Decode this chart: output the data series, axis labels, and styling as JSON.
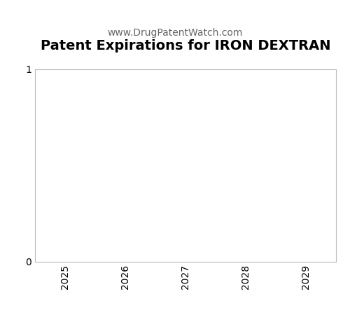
{
  "title": "Patent Expirations for IRON DEXTRAN",
  "subtitle": "www.DrugPatentWatch.com",
  "title_fontsize": 14,
  "subtitle_fontsize": 10,
  "title_fontweight": "bold",
  "xlim": [
    2024.5,
    2029.5
  ],
  "ylim": [
    0,
    1
  ],
  "xticks": [
    2025,
    2026,
    2027,
    2028,
    2029
  ],
  "yticks": [
    0,
    1
  ],
  "background_color": "#ffffff",
  "plot_bg_color": "#ffffff",
  "spine_color": "#bbbbbb",
  "tick_color": "#000000",
  "xlabel": "",
  "ylabel": ""
}
